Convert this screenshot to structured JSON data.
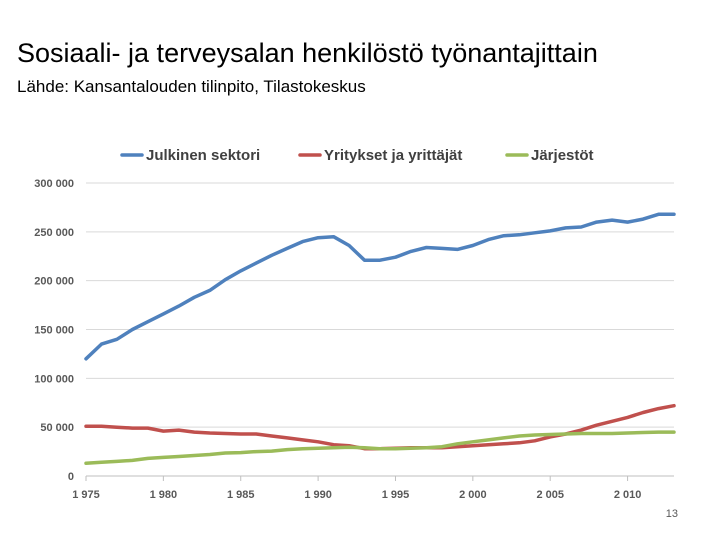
{
  "slide": {
    "title": "Sosiaali- ja terveysalan henkilöstö työnantajittain",
    "subtitle": "Lähde: Kansantalouden tilinpito, Tilastokeskus",
    "page_number": "13"
  },
  "chart_data": {
    "type": "line",
    "title": "",
    "xlabel": "",
    "ylabel": "",
    "xlim": [
      1975,
      2013
    ],
    "ylim": [
      0,
      300000
    ],
    "x_ticks": [
      1975,
      1980,
      1985,
      1990,
      1995,
      2000,
      2005,
      2010
    ],
    "x_tick_labels": [
      "1 975",
      "1 980",
      "1 985",
      "1 990",
      "1 995",
      "2 000",
      "2 005",
      "2 010"
    ],
    "y_ticks": [
      0,
      50000,
      100000,
      150000,
      200000,
      250000,
      300000
    ],
    "y_tick_labels": [
      "0",
      "50 000",
      "100 000",
      "150 000",
      "200 000",
      "250 000",
      "300 000"
    ],
    "grid": "horizontal",
    "legend_position": "top",
    "x": [
      1975,
      1976,
      1977,
      1978,
      1979,
      1980,
      1981,
      1982,
      1983,
      1984,
      1985,
      1986,
      1987,
      1988,
      1989,
      1990,
      1991,
      1992,
      1993,
      1994,
      1995,
      1996,
      1997,
      1998,
      1999,
      2000,
      2001,
      2002,
      2003,
      2004,
      2005,
      2006,
      2007,
      2008,
      2009,
      2010,
      2011,
      2012,
      2013
    ],
    "series": [
      {
        "name": "Julkinen sektori",
        "color": "#4F81BD",
        "values": [
          120000,
          135000,
          140000,
          150000,
          158000,
          166000,
          174000,
          183000,
          190000,
          201000,
          210000,
          218000,
          226000,
          233000,
          240000,
          244000,
          245000,
          236000,
          221000,
          221000,
          224000,
          230000,
          234000,
          233000,
          232000,
          236000,
          242000,
          246000,
          247000,
          249000,
          251000,
          254000,
          255000,
          260000,
          262000,
          260000,
          263000,
          268000,
          268000
        ]
      },
      {
        "name": "Yritykset ja yrittäjät",
        "color": "#C0504D",
        "values": [
          51000,
          51000,
          50000,
          49000,
          49000,
          46000,
          47000,
          45000,
          44000,
          43500,
          43000,
          43000,
          41000,
          39000,
          37000,
          35000,
          32000,
          31000,
          28000,
          28000,
          28500,
          29000,
          29000,
          29000,
          30000,
          31000,
          32000,
          33000,
          34000,
          36000,
          40000,
          43000,
          47000,
          52000,
          56000,
          60000,
          65000,
          69000,
          72000
        ]
      },
      {
        "name": "Järjestöt",
        "color": "#9BBB59",
        "values": [
          13000,
          14000,
          15000,
          16000,
          18000,
          19000,
          20000,
          21000,
          22000,
          23500,
          24000,
          25000,
          25500,
          27000,
          28000,
          28500,
          29000,
          29500,
          29000,
          28000,
          28000,
          28500,
          29000,
          30000,
          33000,
          35000,
          37000,
          39000,
          41000,
          42000,
          42500,
          43000,
          43500,
          43500,
          43500,
          44000,
          44500,
          45000,
          45000
        ]
      }
    ]
  }
}
